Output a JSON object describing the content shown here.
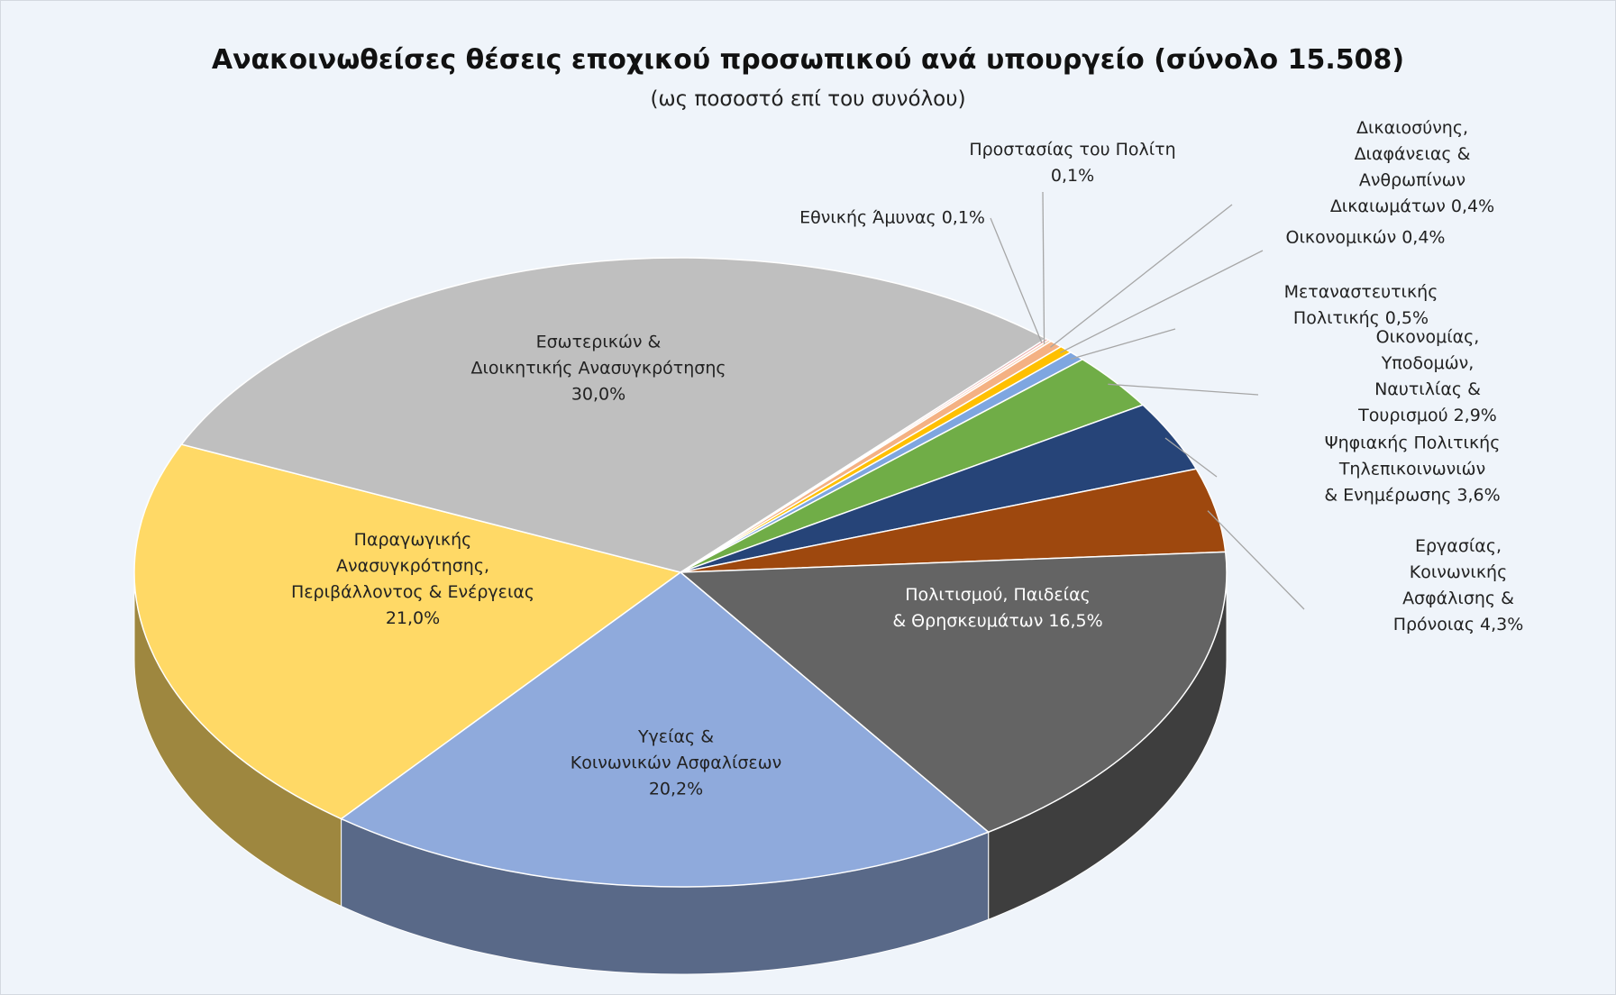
{
  "chart_data": {
    "type": "pie",
    "title": "Ανακοινωθείσες θέσεις εποχικού προσωπικού ανά υπουργείο (σύνολο 15.508)",
    "subtitle": "(ως ποσοστό επί του συνόλου)",
    "categories": [
      "Εθνικής Άμυνας",
      "Προστασίας του Πολίτη",
      "Δικαιοσύνης, Διαφάνειας &\nΑνθρωπίνων  Δικαιωμάτων",
      "Οικονομικών",
      "Μεταναστευτικής Πολιτικής",
      "Οικονομίας, Υποδομών,\nΝαυτιλίας & Τουρισμού",
      "Ψηφιακής Πολιτικής Τηλεπικοινωνιών\n& Ενημέρωσης",
      "Εργασίας, Κοινωνικής\nΑσφάλισης & Πρόνοιας",
      "Πολιτισμού, Παιδείας\n& Θρησκευμάτων",
      "Υγείας &\nΚοινωνικών  Ασφαλίσεων",
      "Παραγωγικής\nΑνασυγκρότησης,\nΠεριβάλλοντος & Ενέργειας",
      "Εσωτερικών &\nΔιοικητικής Ανασυγκρότησης"
    ],
    "values": [
      0.1,
      0.1,
      0.4,
      0.4,
      0.5,
      2.9,
      3.6,
      4.3,
      16.5,
      20.2,
      21.0,
      30.0
    ],
    "value_labels": [
      "0,1%",
      "0,1%",
      "0,4%",
      "0,4%",
      "0,5%",
      "2,9%",
      "3,6%",
      "4,3%",
      "16,5%",
      "20,2%",
      "21,0%",
      "30,0%"
    ],
    "colors": [
      "#e9a3a3",
      "#f8cbad",
      "#f4b183",
      "#ffc000",
      "#7ea6e0",
      "#70ad47",
      "#264478",
      "#9e480e",
      "#646464",
      "#8faadc",
      "#ffd966",
      "#bfbfbf"
    ]
  }
}
